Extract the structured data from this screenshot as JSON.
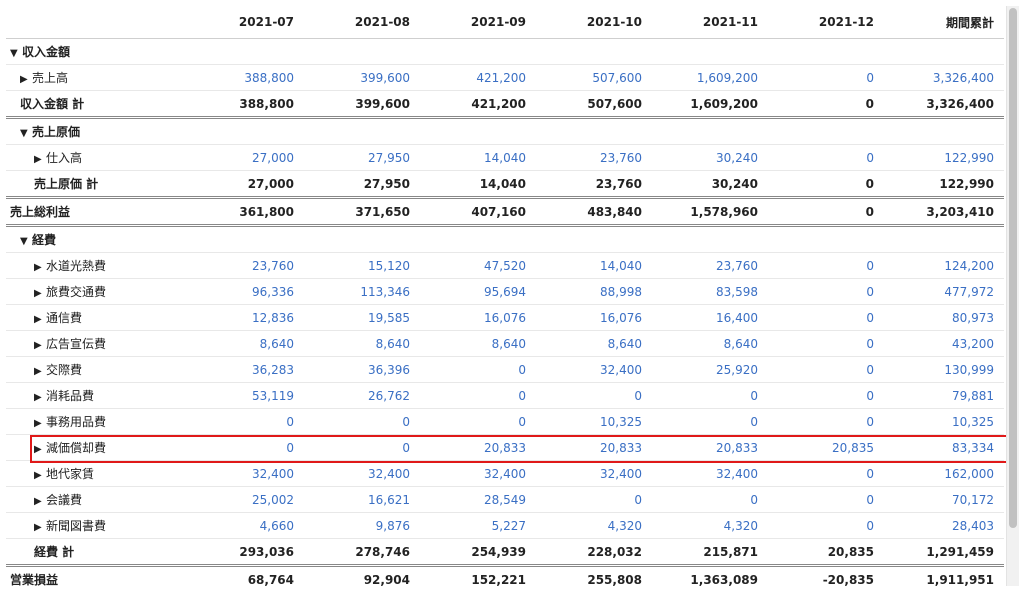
{
  "columns": [
    "",
    "2021-07",
    "2021-08",
    "2021-09",
    "2021-10",
    "2021-11",
    "2021-12",
    "期間累計"
  ],
  "rows": [
    {
      "kind": "section",
      "indent": 0,
      "icon": "▼",
      "label": "収入金額",
      "values": [
        "",
        "",
        "",
        "",
        "",
        "",
        ""
      ]
    },
    {
      "kind": "item",
      "indent": 1,
      "icon": "▶",
      "label": "売上高",
      "values": [
        "388,800",
        "399,600",
        "421,200",
        "507,600",
        "1,609,200",
        "0",
        "3,326,400"
      ]
    },
    {
      "kind": "total",
      "indent": 1,
      "icon": "",
      "label": "収入金額 計",
      "values": [
        "388,800",
        "399,600",
        "421,200",
        "507,600",
        "1,609,200",
        "0",
        "3,326,400"
      ]
    },
    {
      "kind": "section",
      "indent": 1,
      "icon": "▼",
      "label": "売上原価",
      "values": [
        "",
        "",
        "",
        "",
        "",
        "",
        ""
      ]
    },
    {
      "kind": "item",
      "indent": 2,
      "icon": "▶",
      "label": "仕入高",
      "values": [
        "27,000",
        "27,950",
        "14,040",
        "23,760",
        "30,240",
        "0",
        "122,990"
      ]
    },
    {
      "kind": "subtotal",
      "indent": 2,
      "icon": "",
      "label": "売上原価 計",
      "values": [
        "27,000",
        "27,950",
        "14,040",
        "23,760",
        "30,240",
        "0",
        "122,990"
      ]
    },
    {
      "kind": "total",
      "indent": 0,
      "icon": "",
      "label": "売上総利益",
      "values": [
        "361,800",
        "371,650",
        "407,160",
        "483,840",
        "1,578,960",
        "0",
        "3,203,410"
      ]
    },
    {
      "kind": "section",
      "indent": 1,
      "icon": "▼",
      "label": "経費",
      "values": [
        "",
        "",
        "",
        "",
        "",
        "",
        ""
      ]
    },
    {
      "kind": "item",
      "indent": 2,
      "icon": "▶",
      "label": "水道光熱費",
      "values": [
        "23,760",
        "15,120",
        "47,520",
        "14,040",
        "23,760",
        "0",
        "124,200"
      ]
    },
    {
      "kind": "item",
      "indent": 2,
      "icon": "▶",
      "label": "旅費交通費",
      "values": [
        "96,336",
        "113,346",
        "95,694",
        "88,998",
        "83,598",
        "0",
        "477,972"
      ]
    },
    {
      "kind": "item",
      "indent": 2,
      "icon": "▶",
      "label": "通信費",
      "values": [
        "12,836",
        "19,585",
        "16,076",
        "16,076",
        "16,400",
        "0",
        "80,973"
      ]
    },
    {
      "kind": "item",
      "indent": 2,
      "icon": "▶",
      "label": "広告宣伝費",
      "values": [
        "8,640",
        "8,640",
        "8,640",
        "8,640",
        "8,640",
        "0",
        "43,200"
      ]
    },
    {
      "kind": "item",
      "indent": 2,
      "icon": "▶",
      "label": "交際費",
      "values": [
        "36,283",
        "36,396",
        "0",
        "32,400",
        "25,920",
        "0",
        "130,999"
      ]
    },
    {
      "kind": "item",
      "indent": 2,
      "icon": "▶",
      "label": "消耗品費",
      "values": [
        "53,119",
        "26,762",
        "0",
        "0",
        "0",
        "0",
        "79,881"
      ]
    },
    {
      "kind": "item",
      "indent": 2,
      "icon": "▶",
      "label": "事務用品費",
      "values": [
        "0",
        "0",
        "0",
        "10,325",
        "0",
        "0",
        "10,325"
      ]
    },
    {
      "kind": "item",
      "indent": 2,
      "icon": "▶",
      "label": "減価償却費",
      "highlight": true,
      "values": [
        "0",
        "0",
        "20,833",
        "20,833",
        "20,833",
        "20,835",
        "83,334"
      ]
    },
    {
      "kind": "item",
      "indent": 2,
      "icon": "▶",
      "label": "地代家賃",
      "values": [
        "32,400",
        "32,400",
        "32,400",
        "32,400",
        "32,400",
        "0",
        "162,000"
      ]
    },
    {
      "kind": "item",
      "indent": 2,
      "icon": "▶",
      "label": "会議費",
      "values": [
        "25,002",
        "16,621",
        "28,549",
        "0",
        "0",
        "0",
        "70,172"
      ]
    },
    {
      "kind": "item",
      "indent": 2,
      "icon": "▶",
      "label": "新聞図書費",
      "values": [
        "4,660",
        "9,876",
        "5,227",
        "4,320",
        "4,320",
        "0",
        "28,403"
      ]
    },
    {
      "kind": "subtotal",
      "indent": 2,
      "icon": "",
      "label": "経費 計",
      "values": [
        "293,036",
        "278,746",
        "254,939",
        "228,032",
        "215,871",
        "20,835",
        "1,291,459"
      ]
    },
    {
      "kind": "final",
      "indent": 0,
      "icon": "",
      "label": "営業損益",
      "values": [
        "68,764",
        "92,904",
        "152,221",
        "255,808",
        "1,363,089",
        "-20,835",
        "1,911,951"
      ]
    }
  ],
  "colors": {
    "link": "#3a6fc4",
    "highlight": "#e01919"
  }
}
